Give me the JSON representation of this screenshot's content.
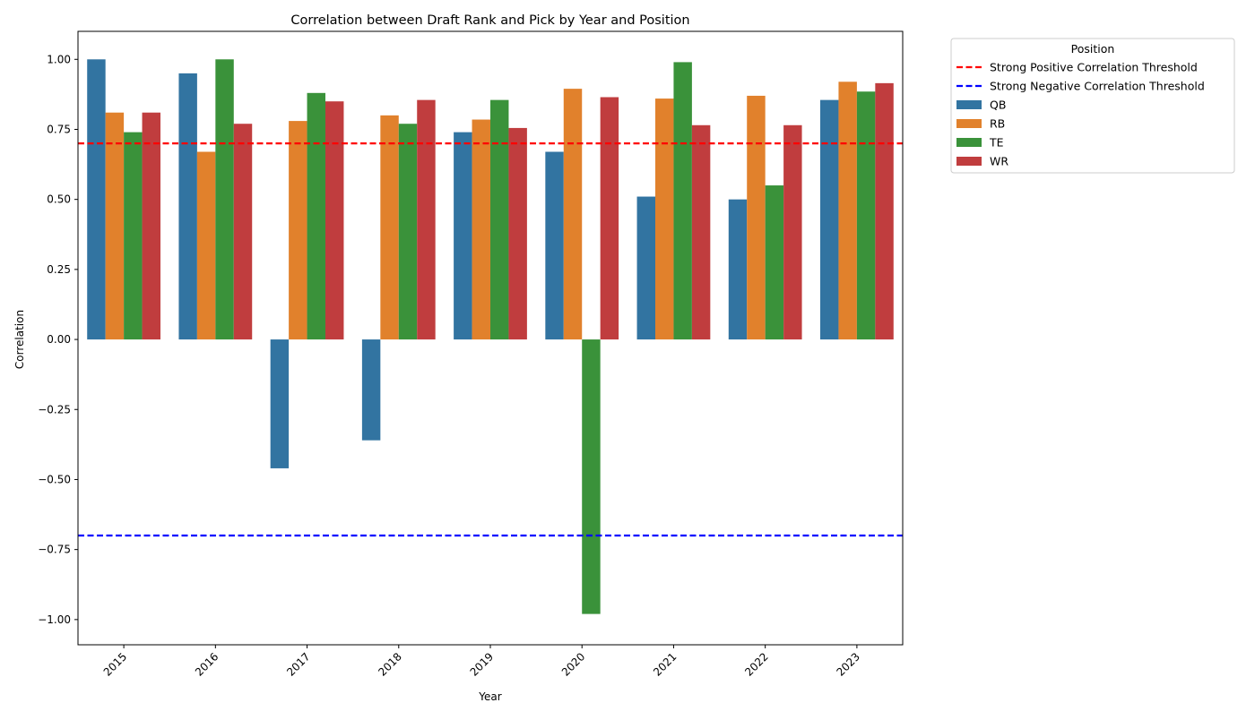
{
  "chart_data": {
    "type": "bar",
    "title": "Correlation between Draft Rank and Pick by Year and Position",
    "xlabel": "Year",
    "ylabel": "Correlation",
    "categories": [
      "2015",
      "2016",
      "2017",
      "2018",
      "2019",
      "2020",
      "2021",
      "2022",
      "2023"
    ],
    "series": [
      {
        "name": "QB",
        "color": "#3274a1",
        "values": [
          1.0,
          0.95,
          -0.46,
          -0.36,
          0.74,
          0.67,
          0.51,
          0.5,
          0.855
        ]
      },
      {
        "name": "RB",
        "color": "#e1812c",
        "values": [
          0.81,
          0.67,
          0.78,
          0.8,
          0.785,
          0.895,
          0.86,
          0.87,
          0.92
        ]
      },
      {
        "name": "TE",
        "color": "#3a923a",
        "values": [
          0.74,
          1.0,
          0.88,
          0.77,
          0.855,
          -0.98,
          0.99,
          0.55,
          0.885
        ]
      },
      {
        "name": "WR",
        "color": "#c03d3e",
        "values": [
          0.81,
          0.77,
          0.85,
          0.855,
          0.755,
          0.865,
          0.765,
          0.765,
          0.915
        ]
      }
    ],
    "reference_lines": [
      {
        "name": "Strong Positive Correlation Threshold",
        "value": 0.7,
        "color": "#ff0000",
        "style": "dashed"
      },
      {
        "name": "Strong Negative Correlation Threshold",
        "value": -0.7,
        "color": "#0000ff",
        "style": "dashed"
      }
    ],
    "ylim": [
      -1.09,
      1.1
    ],
    "yticks": [
      -1.0,
      -0.75,
      -0.5,
      -0.25,
      0.0,
      0.25,
      0.5,
      0.75,
      1.0
    ],
    "ytick_labels": [
      "−1.00",
      "−0.75",
      "−0.50",
      "−0.25",
      "0.00",
      "0.25",
      "0.50",
      "0.75",
      "1.00"
    ],
    "legend": {
      "title": "Position",
      "placement": "outside-top-right"
    },
    "grid": false
  }
}
